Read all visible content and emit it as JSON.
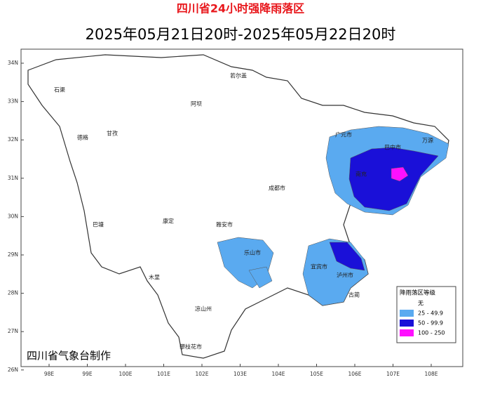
{
  "title": "四川省24小时强降雨落区",
  "subtitle": "2025年05月21日20时-2025年05月22日20时",
  "lat_ticks": [
    "34N",
    "33N",
    "32N",
    "31N",
    "30N",
    "29N",
    "28N",
    "27N",
    "26N"
  ],
  "lon_ticks": [
    "98E",
    "99E",
    "100E",
    "101E",
    "102E",
    "103E",
    "104E",
    "105E",
    "106E",
    "107E",
    "108E"
  ],
  "legend": {
    "title": "降雨落区等级",
    "items": [
      {
        "label": "无",
        "color": "#ffffff"
      },
      {
        "label": "25 - 49.9",
        "color": "#5aaaf0"
      },
      {
        "label": "50 - 99.9",
        "color": "#1a10d8"
      },
      {
        "label": "100 - 250",
        "color": "#ff10ff"
      }
    ]
  },
  "credit": "四川省气象台制作",
  "places": [
    "石渠",
    "德格",
    "甘孜",
    "若尔盖",
    "阿坝",
    "广元市",
    "巴中市",
    "万源",
    "南充",
    "成都市",
    "乐山市",
    "宜宾市",
    "泸州市",
    "古蔺",
    "凉山州",
    "攀枝花市",
    "木里",
    "巴塘",
    "康定",
    "雅安市"
  ]
}
